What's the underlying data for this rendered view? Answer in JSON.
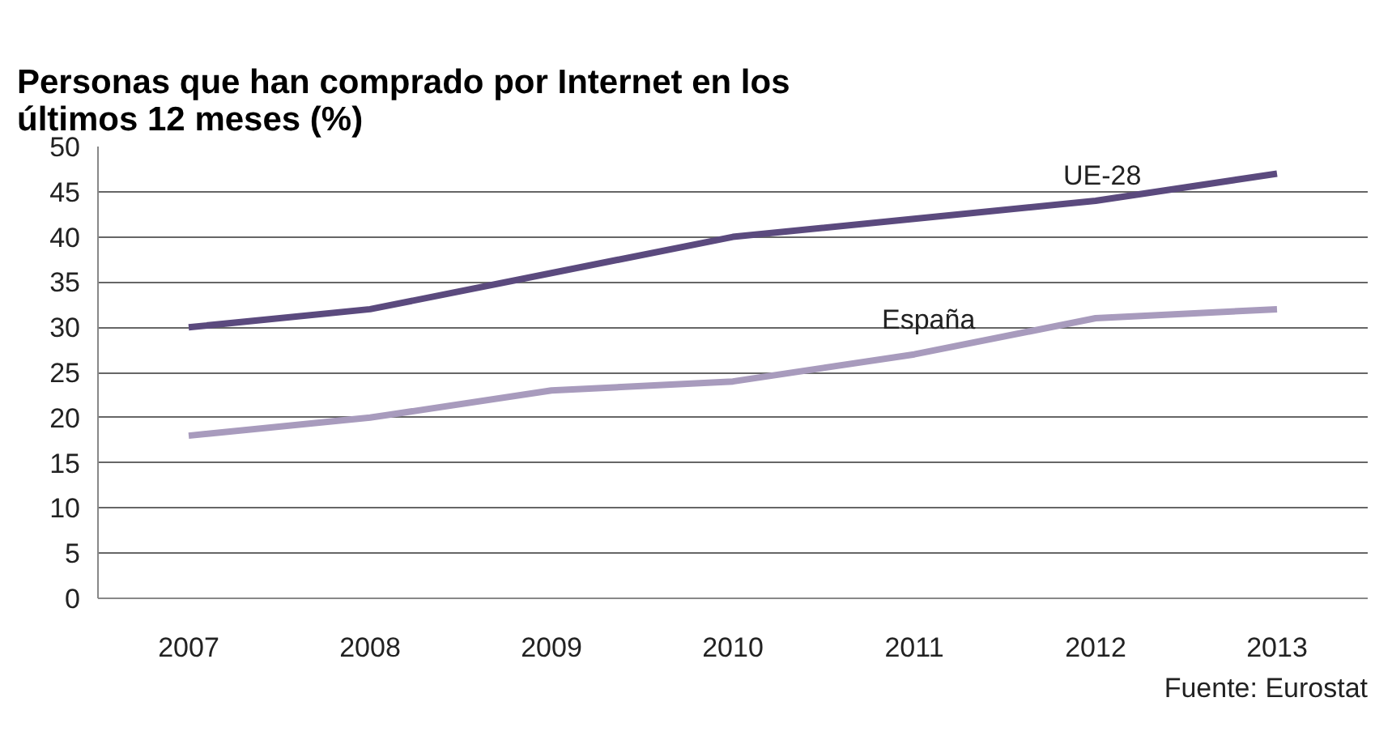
{
  "chart_data": {
    "type": "line",
    "title": "Personas que han comprado por Internet en los\núltimos 12 meses (%)",
    "categories": [
      "2007",
      "2008",
      "2009",
      "2010",
      "2011",
      "2012",
      "2013"
    ],
    "series": [
      {
        "name": "UE-28",
        "color": "#5b4a7e",
        "values": [
          30,
          32,
          36,
          40,
          42,
          44,
          47
        ]
      },
      {
        "name": "España",
        "color": "#a89bbd",
        "values": [
          18,
          20,
          23,
          24,
          27,
          31,
          32
        ]
      }
    ],
    "ylim": [
      0,
      50
    ],
    "yticks": [
      0,
      5,
      10,
      15,
      20,
      25,
      30,
      35,
      40,
      45,
      50
    ],
    "grid": "y",
    "legend": false,
    "marker": "none",
    "line_style": "solid",
    "annotations": [
      "Fuente: Eurostat"
    ]
  }
}
